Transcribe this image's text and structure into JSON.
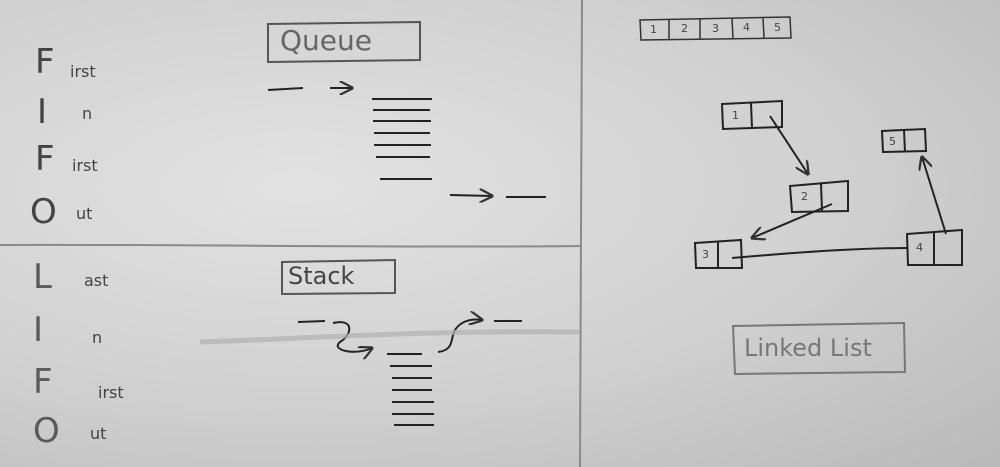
{
  "fifo": {
    "letters": [
      "F",
      "I",
      "F",
      "O"
    ],
    "suffixes": [
      "irst",
      "n",
      "irst",
      "ut"
    ]
  },
  "lifo": {
    "letters": [
      "L",
      "I",
      "F",
      "O"
    ],
    "suffixes": [
      "ast",
      "n",
      "irst",
      "ut"
    ]
  },
  "queue": {
    "title": "Queue"
  },
  "stack": {
    "title": "Stack"
  },
  "array": {
    "cells": [
      "1",
      "2",
      "3",
      "4",
      "5"
    ]
  },
  "linked_list": {
    "title": "Linked List",
    "nodes": [
      "1",
      "2",
      "3",
      "4",
      "5"
    ]
  }
}
